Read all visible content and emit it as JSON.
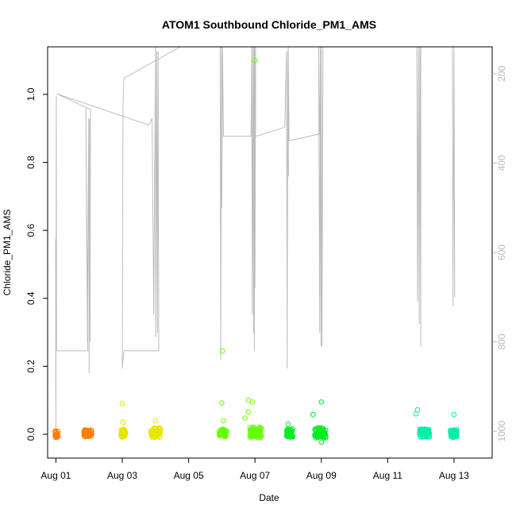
{
  "chart_data": {
    "type": "scatter",
    "title": "ATOM1 Southbound Chloride_PM1_AMS",
    "xlabel": "Date",
    "ylabel": "Chloride_PM1_AMS",
    "x_ticks": [
      "Aug 01",
      "Aug 03",
      "Aug 05",
      "Aug 07",
      "Aug 09",
      "Aug 11",
      "Aug 13"
    ],
    "y_ticks": [
      "0.0",
      "0.2",
      "0.4",
      "0.6",
      "0.8",
      "1.0"
    ],
    "y2_ticks": [
      "200",
      "400",
      "600",
      "800",
      "1000"
    ],
    "xlim_days": [
      -0.25,
      13.15
    ],
    "ylim": [
      -0.07,
      1.14
    ],
    "y2lim": [
      1060,
      140
    ],
    "point_colors": [
      "#ff7f00",
      "#e6e600",
      "#66ff00",
      "#00ee22",
      "#00eeaa"
    ],
    "line_color": "#bdbdbd",
    "points": [
      {
        "day": 0.0,
        "y": 0.0,
        "color": 0,
        "n": 30,
        "spread": 0.1,
        "noise": 0.01
      },
      {
        "day": 0.92,
        "y": 0.003,
        "color": 0,
        "n": 50,
        "spread": 0.25,
        "noise": 0.01
      },
      {
        "day": 2.0,
        "y": 0.003,
        "color": 1,
        "n": 35,
        "spread": 0.15,
        "noise": 0.012
      },
      {
        "day": 2.95,
        "y": 0.005,
        "color": 1,
        "n": 55,
        "spread": 0.3,
        "noise": 0.014
      },
      {
        "day": 5.0,
        "y": 0.004,
        "color": 2,
        "n": 40,
        "spread": 0.25,
        "noise": 0.012
      },
      {
        "day": 5.95,
        "y": 0.006,
        "color": 2,
        "n": 70,
        "spread": 0.35,
        "noise": 0.015
      },
      {
        "day": 7.0,
        "y": 0.004,
        "color": 3,
        "n": 40,
        "spread": 0.2,
        "noise": 0.012
      },
      {
        "day": 7.9,
        "y": 0.004,
        "color": 3,
        "n": 70,
        "spread": 0.35,
        "noise": 0.015
      },
      {
        "day": 11.05,
        "y": 0.004,
        "color": 4,
        "n": 50,
        "spread": 0.3,
        "noise": 0.012
      },
      {
        "day": 11.95,
        "y": 0.003,
        "color": 4,
        "n": 45,
        "spread": 0.2,
        "noise": 0.012
      }
    ],
    "outliers": [
      {
        "day": 2.0,
        "y": 0.09,
        "color": 1
      },
      {
        "day": 2.02,
        "y": 0.035,
        "color": 1
      },
      {
        "day": 3.0,
        "y": 0.04,
        "color": 1
      },
      {
        "day": 5.02,
        "y": 0.245,
        "color": 2
      },
      {
        "day": 5.0,
        "y": 0.092,
        "color": 2
      },
      {
        "day": 5.05,
        "y": 0.04,
        "color": 2
      },
      {
        "day": 5.8,
        "y": 0.1,
        "color": 2
      },
      {
        "day": 5.92,
        "y": 0.095,
        "color": 2
      },
      {
        "day": 5.8,
        "y": 0.066,
        "color": 2
      },
      {
        "day": 5.7,
        "y": 0.048,
        "color": 2
      },
      {
        "day": 6.0,
        "y": 1.1,
        "color": 2
      },
      {
        "day": 7.0,
        "y": 0.03,
        "color": 3
      },
      {
        "day": 7.75,
        "y": 0.058,
        "color": 3
      },
      {
        "day": 8.0,
        "y": 0.095,
        "color": 3
      },
      {
        "day": 8.0,
        "y": -0.023,
        "color": 3
      },
      {
        "day": 10.9,
        "y": 0.072,
        "color": 4
      },
      {
        "day": 10.85,
        "y": 0.06,
        "color": 4
      },
      {
        "day": 12.0,
        "y": 0.058,
        "color": 4
      }
    ],
    "secondary_line": [
      [
        -0.01,
        570
      ],
      [
        0.0,
        1000
      ],
      [
        0.01,
        250
      ],
      [
        0.02,
        820
      ],
      [
        0.96,
        820
      ],
      [
        0.9,
        275
      ],
      [
        0.95,
        800
      ],
      [
        0.99,
        300
      ],
      [
        1.0,
        870
      ],
      [
        1.02,
        300
      ],
      [
        1.03,
        800
      ],
      [
        1.04,
        280
      ],
      [
        0.02,
        245
      ],
      [
        0.02,
        245
      ],
      [
        2.8,
        315
      ],
      [
        2.9,
        300
      ],
      [
        2.95,
        740
      ],
      [
        3.0,
        140
      ],
      [
        3.01,
        790
      ],
      [
        3.04,
        150
      ],
      [
        3.06,
        780
      ],
      [
        3.08,
        150
      ],
      [
        3.1,
        820
      ],
      [
        2.05,
        820
      ],
      [
        2.0,
        860
      ],
      [
        2.02,
        270
      ],
      [
        2.05,
        210
      ],
      [
        3.75,
        140
      ],
      [
        4.95,
        140
      ],
      [
        4.97,
        840
      ],
      [
        4.99,
        140
      ],
      [
        5.0,
        500
      ],
      [
        5.02,
        140
      ],
      [
        5.05,
        340
      ],
      [
        5.05,
        340
      ],
      [
        5.05,
        340
      ],
      [
        5.88,
        340
      ],
      [
        5.9,
        140
      ],
      [
        5.92,
        740
      ],
      [
        5.94,
        140
      ],
      [
        5.96,
        780
      ],
      [
        5.97,
        140
      ],
      [
        5.98,
        820
      ],
      [
        5.99,
        140
      ],
      [
        6.0,
        680
      ],
      [
        6.02,
        140
      ],
      [
        6.02,
        340
      ],
      [
        6.03,
        340
      ],
      [
        6.9,
        320
      ],
      [
        6.95,
        150
      ],
      [
        6.97,
        860
      ],
      [
        6.99,
        150
      ],
      [
        7.01,
        430
      ],
      [
        7.0,
        140
      ],
      [
        7.03,
        350
      ],
      [
        7.03,
        350
      ],
      [
        7.95,
        335
      ],
      [
        7.92,
        140
      ],
      [
        7.95,
        780
      ],
      [
        7.97,
        140
      ],
      [
        7.99,
        810
      ],
      [
        8.0,
        140
      ],
      [
        8.02,
        810
      ],
      [
        8.05,
        140
      ],
      [
        10.88,
        140
      ],
      [
        10.9,
        710
      ],
      [
        10.93,
        140
      ],
      [
        10.95,
        760
      ],
      [
        10.97,
        140
      ],
      [
        11.0,
        810
      ],
      [
        11.0,
        140
      ],
      [
        11.95,
        140
      ],
      [
        11.97,
        720
      ],
      [
        12.0,
        140
      ],
      [
        12.02,
        700
      ]
    ]
  }
}
